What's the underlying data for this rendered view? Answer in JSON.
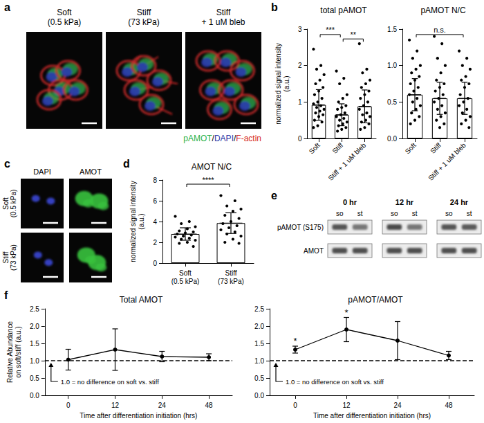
{
  "figure": {
    "a": {
      "label": "a",
      "columns": [
        "Soft\n(0.5 kPa)",
        "Stiff\n(73 kPa)",
        "Stiff\n+ 1 uM bleb"
      ],
      "stain": [
        {
          "text": "pAMOT",
          "color": "#2db34a"
        },
        {
          "text": "/",
          "color": "#000000"
        },
        {
          "text": "DAPI",
          "color": "#2b3aa8"
        },
        {
          "text": "/",
          "color": "#000000"
        },
        {
          "text": "F-actin",
          "color": "#d42a2a"
        }
      ]
    },
    "b": {
      "label": "b"
    },
    "c": {
      "label": "c",
      "columns": [
        "DAPI",
        "AMOT"
      ],
      "rows": [
        "Soft\n(0.5 kPa)",
        "Stiff\n(73 kPa)"
      ]
    },
    "d": {
      "label": "d"
    },
    "e": {
      "label": "e",
      "times": [
        "0 hr",
        "12 hr",
        "24 hr"
      ],
      "lanes": [
        "so",
        "st"
      ],
      "rows": [
        "pAMOT (S175)",
        "AMOT"
      ]
    },
    "f": {
      "label": "f"
    }
  },
  "chart_data": [
    {
      "type": "bar",
      "title": "total pAMOT",
      "ylabel": "normalized signal intensity\n(a.u.)",
      "categories": [
        "Soft",
        "Stiff",
        "Stiff + 1 uM bleb"
      ],
      "values": [
        0.92,
        0.65,
        0.88
      ],
      "error": [
        0.42,
        0.3,
        0.45
      ],
      "points": [
        [
          2.45,
          2.0,
          1.9,
          1.75,
          1.6,
          1.5,
          1.4,
          1.3,
          1.2,
          1.1,
          1.0,
          0.95,
          0.9,
          0.85,
          0.8,
          0.75,
          0.7,
          0.65,
          0.6,
          0.5,
          0.45,
          0.35,
          0.3
        ],
        [
          1.85,
          1.65,
          1.5,
          1.2,
          1.1,
          1.0,
          0.9,
          0.85,
          0.8,
          0.7,
          0.65,
          0.6,
          0.55,
          0.5,
          0.45,
          0.4,
          0.35,
          0.3,
          0.25,
          0.2
        ],
        [
          2.6,
          1.9,
          1.8,
          1.6,
          1.5,
          1.4,
          1.3,
          1.2,
          1.1,
          1.0,
          0.9,
          0.8,
          0.7,
          0.65,
          0.6,
          0.5,
          0.45,
          0.4,
          0.3,
          0.25
        ]
      ],
      "significance": [
        {
          "from": 0,
          "to": 1,
          "label": "***"
        },
        {
          "from": 1,
          "to": 2,
          "label": "**"
        }
      ],
      "ylim": [
        0,
        3
      ],
      "yticks": [
        0,
        1,
        2,
        3
      ],
      "color": "#ffffff",
      "marker": "circle",
      "grid": false
    },
    {
      "type": "bar",
      "title": "pAMOT N/C",
      "categories": [
        "Soft",
        "Stiff",
        "Stiff + 1 uM bleb"
      ],
      "values": [
        0.6,
        0.55,
        0.55
      ],
      "error": [
        0.22,
        0.22,
        0.22
      ],
      "points": [
        [
          1.35,
          1.2,
          1.1,
          1.0,
          0.95,
          0.9,
          0.85,
          0.8,
          0.75,
          0.7,
          0.65,
          0.6,
          0.55,
          0.5,
          0.45,
          0.4,
          0.35,
          0.3,
          0.25,
          0.2
        ],
        [
          1.4,
          1.3,
          1.1,
          1.0,
          0.9,
          0.8,
          0.75,
          0.7,
          0.65,
          0.6,
          0.55,
          0.5,
          0.45,
          0.4,
          0.35,
          0.3,
          0.25,
          0.2,
          0.15
        ],
        [
          1.2,
          1.1,
          1.0,
          0.95,
          0.85,
          0.8,
          0.75,
          0.7,
          0.6,
          0.55,
          0.5,
          0.45,
          0.4,
          0.35,
          0.3,
          0.25,
          0.2,
          0.15
        ]
      ],
      "significance": [
        {
          "from": 0,
          "to": 2,
          "label": "n.s."
        }
      ],
      "ylim": [
        0,
        1.5
      ],
      "yticks": [
        {
          "value": 0,
          "label": "0.0"
        },
        0.5,
        {
          "value": 1,
          "label": "1.0"
        },
        1.5
      ],
      "color": "#ffffff",
      "marker": "circle",
      "grid": false
    },
    {
      "type": "bar",
      "title": "AMOT N/C",
      "ylabel": "normalized signal intensity\n(a.u.)",
      "categories": [
        "Soft\n(0.5 kPa)",
        "Stiff\n(73 kPa)"
      ],
      "values": [
        2.8,
        3.85
      ],
      "error": [
        0.6,
        1.0
      ],
      "points": [
        [
          4.5,
          4.0,
          3.8,
          3.5,
          3.3,
          3.1,
          3.0,
          2.9,
          2.8,
          2.7,
          2.6,
          2.5,
          2.4,
          2.3,
          2.2,
          2.0,
          1.9,
          1.6
        ],
        [
          6.5,
          6.0,
          5.5,
          5.2,
          5.0,
          4.6,
          4.3,
          4.0,
          3.8,
          3.6,
          3.4,
          3.2,
          3.0,
          2.8,
          2.6,
          2.3,
          2.0,
          1.9
        ]
      ],
      "significance": [
        {
          "from": 0,
          "to": 1,
          "label": "****"
        }
      ],
      "ylim": [
        0,
        8
      ],
      "yticks": [
        0,
        2,
        4,
        6,
        8
      ],
      "color": "#ffffff",
      "marker": "circle",
      "grid": false
    },
    {
      "type": "line",
      "title": "Total AMOT",
      "xlabel": "Time after differentiation initiation (hrs)",
      "ylabel": "Relative Abundance\non soft/stiff (a.u.)",
      "categories": [
        "0",
        "12",
        "24",
        "48"
      ],
      "values": [
        1.03,
        1.32,
        1.12,
        1.1
      ],
      "error": [
        0.3,
        0.6,
        0.15,
        0.1
      ],
      "reference": {
        "value": 1.0,
        "label": "1.0 = no difference on soft vs. stiff"
      },
      "ylim": [
        0,
        2.5
      ],
      "yticks": [
        {
          "value": 0,
          "label": "0.0"
        },
        0.5,
        {
          "value": 1,
          "label": "1.0"
        },
        1.5,
        {
          "value": 2,
          "label": "2.0"
        },
        2.5
      ],
      "color": "#000000",
      "marker": "circle",
      "grid": false
    },
    {
      "type": "line",
      "title": "pAMOT/AMOT",
      "xlabel": "Time after differentiation initiation (hrs)",
      "categories": [
        "0",
        "12",
        "24",
        "48"
      ],
      "values": [
        1.32,
        1.9,
        1.58,
        1.15
      ],
      "error": [
        0.1,
        0.35,
        0.55,
        0.12
      ],
      "annotations": [
        {
          "index": 0,
          "label": "*"
        },
        {
          "index": 1,
          "label": "*"
        }
      ],
      "reference": {
        "value": 1.0,
        "label": "1.0 = no difference on soft vs. stiff"
      },
      "ylim": [
        0,
        2.5
      ],
      "yticks": [
        {
          "value": 0,
          "label": "0.0"
        },
        0.5,
        {
          "value": 1,
          "label": "1.0"
        },
        1.5,
        {
          "value": 2,
          "label": "2.0"
        },
        2.5
      ],
      "color": "#000000",
      "marker": "circle",
      "grid": false
    }
  ]
}
